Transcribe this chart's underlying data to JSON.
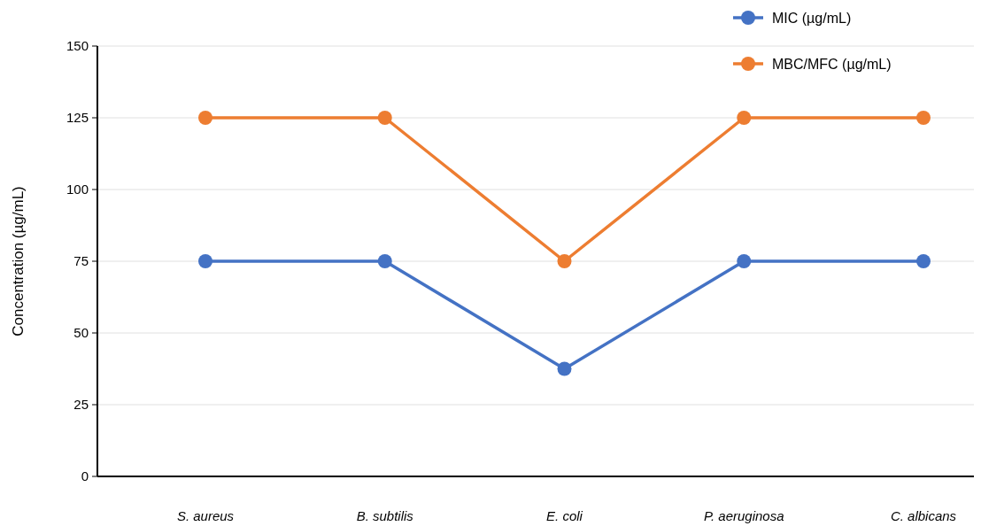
{
  "chart_data": {
    "type": "line",
    "ylabel": "Concentration (µg/mL)",
    "categories": [
      "S. aureus",
      "B. subtilis",
      "E. coli",
      "P. aeruginosa",
      "C. albicans"
    ],
    "series": [
      {
        "name": "MIC (µg/mL)",
        "color": "#4472c4",
        "values": [
          75,
          75,
          37.5,
          75,
          75
        ]
      },
      {
        "name": "MBC/MFC (µg/mL)",
        "color": "#ed7d31",
        "values": [
          125,
          125,
          75,
          125,
          125
        ]
      }
    ],
    "ylim": [
      0,
      150
    ],
    "yticks": [
      0,
      25,
      50,
      75,
      100,
      125,
      150
    ],
    "grid": "y",
    "legend": "top right",
    "marker": "circle",
    "line_style": "solid"
  }
}
